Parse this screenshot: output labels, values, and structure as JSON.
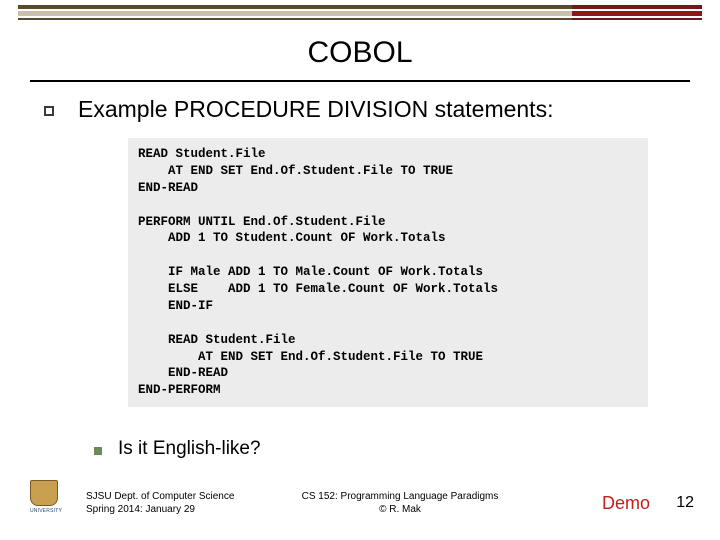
{
  "colors": {
    "rule_dark": "#5a4a2a",
    "rule_light": "#c9c0b0",
    "rule_red": "#8a1a1a",
    "code_bg": "#ececec",
    "bullet_green": "#6b8a5a",
    "demo_red": "#c02020"
  },
  "title": "COBOL",
  "heading1": "Example PROCEDURE DIVISION statements:",
  "code": "READ Student.File\n    AT END SET End.Of.Student.File TO TRUE\nEND-READ\n\nPERFORM UNTIL End.Of.Student.File\n    ADD 1 TO Student.Count OF Work.Totals\n\n    IF Male ADD 1 TO Male.Count OF Work.Totals\n    ELSE    ADD 1 TO Female.Count OF Work.Totals\n    END-IF\n\n    READ Student.File\n        AT END SET End.Of.Student.File TO TRUE\n    END-READ\nEND-PERFORM",
  "heading2": "Is it English-like?",
  "footer": {
    "left_line1": "SJSU Dept. of Computer Science",
    "left_line2": "Spring 2014: January 29",
    "center_line1": "CS 152: Programming Language Paradigms",
    "center_line2": "© R. Mak"
  },
  "demo_label": "Demo",
  "page_number": "12",
  "logo_text": "UNIVERSITY"
}
